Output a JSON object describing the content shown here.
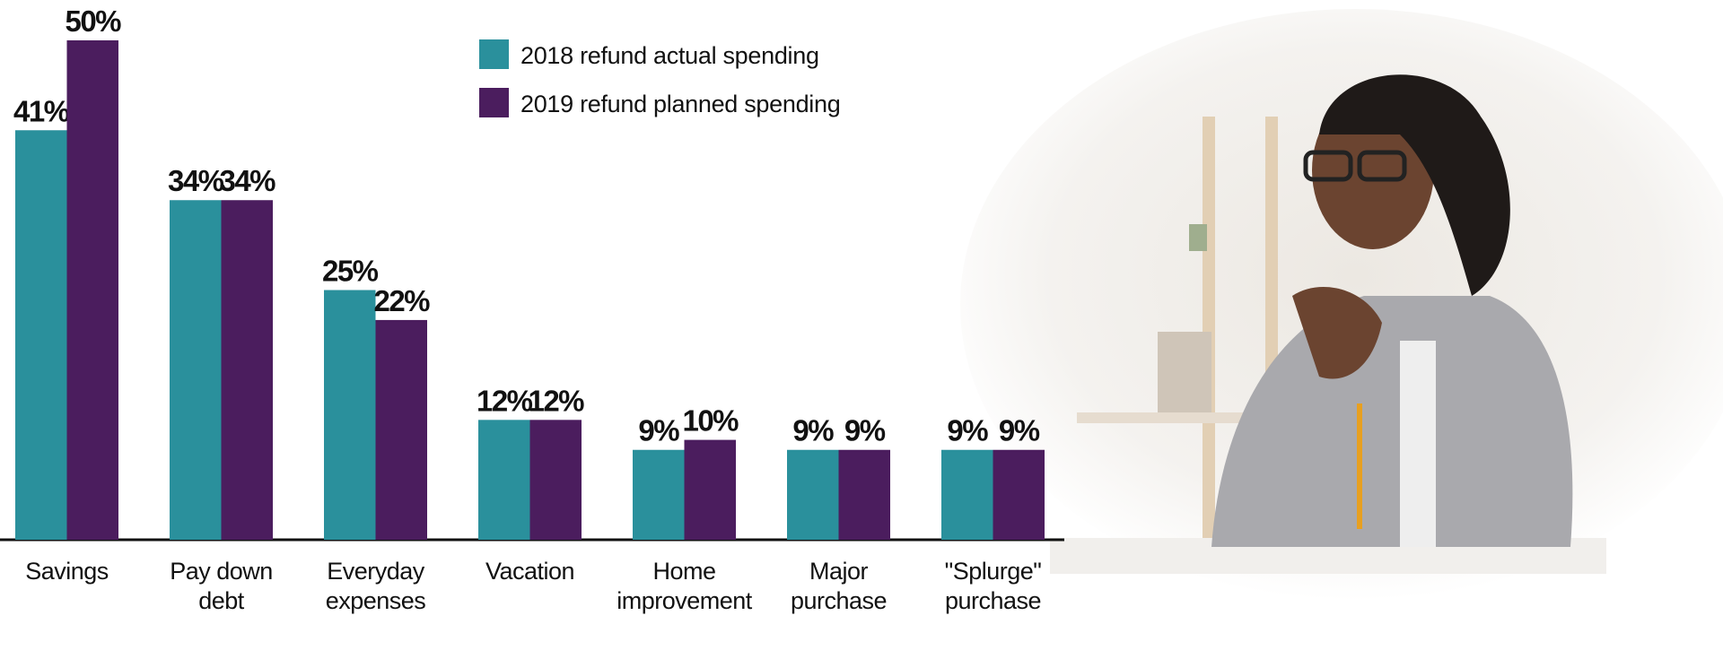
{
  "chart_data": {
    "type": "bar",
    "categories": [
      "Savings",
      "Pay down\ndebt",
      "Everyday\nexpenses",
      "Vacation",
      "Home\nimprovement",
      "Major\npurchase",
      "\"Splurge\"\npurchase"
    ],
    "series": [
      {
        "name": "2018 refund actual spending",
        "color": "#2a909c",
        "values": [
          41,
          34,
          25,
          12,
          9,
          9,
          9
        ],
        "value_labels": [
          "41%",
          "34%",
          "25%",
          "12%",
          "9%",
          "9%",
          "9%"
        ]
      },
      {
        "name": "2019 refund planned spending",
        "color": "#4b1d5e",
        "values": [
          50,
          34,
          22,
          12,
          10,
          9,
          9
        ],
        "value_labels": [
          "50%",
          "34%",
          "22%",
          "12%",
          "10%",
          "9%",
          "9%"
        ]
      }
    ],
    "ylim": [
      0,
      50
    ],
    "legend": "top"
  }
}
